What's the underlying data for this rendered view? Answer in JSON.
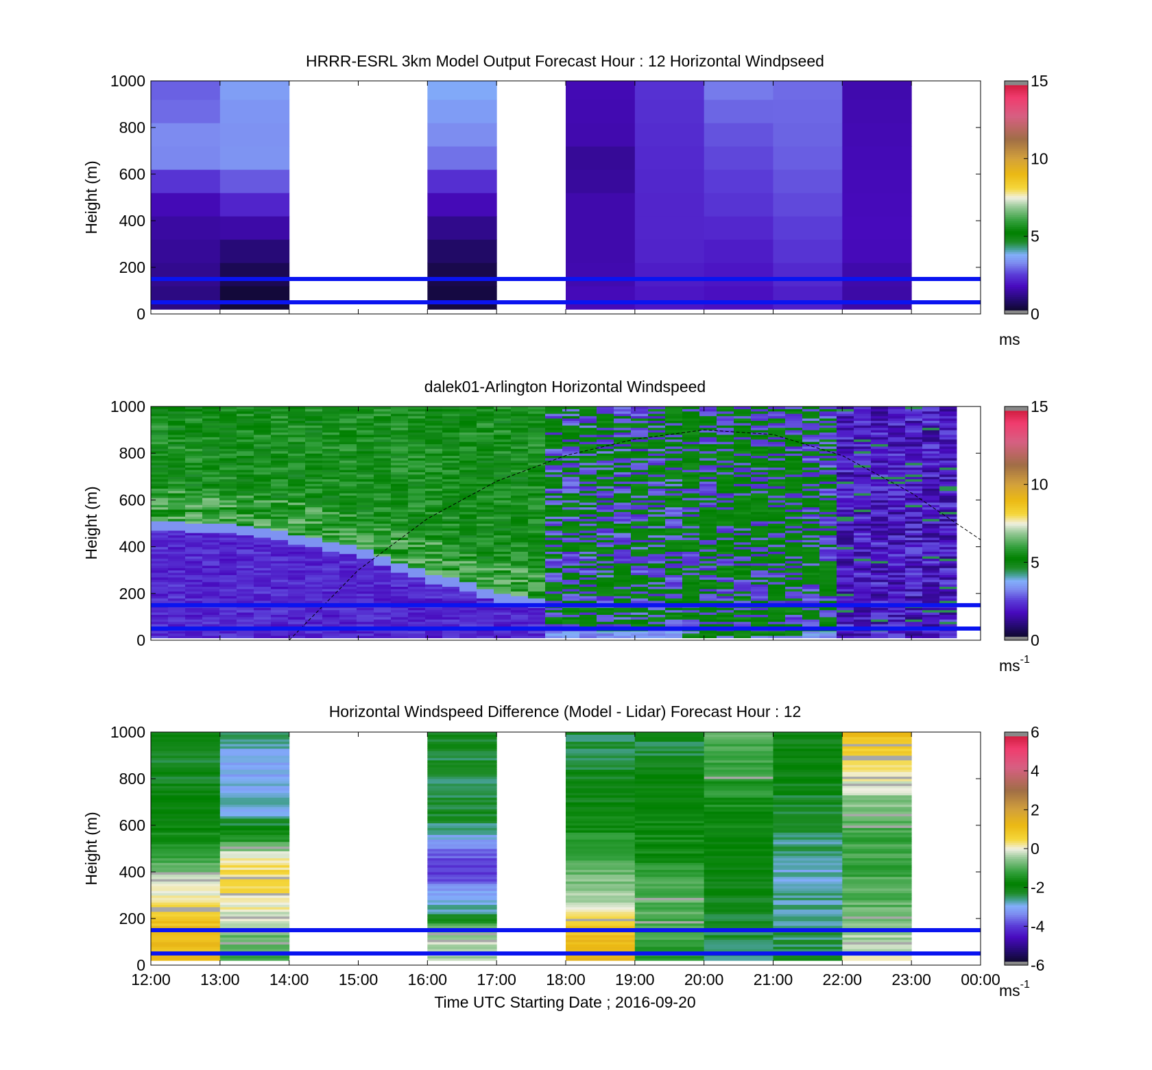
{
  "figure": {
    "x_tick_labels": [
      "12:00",
      "13:00",
      "14:00",
      "15:00",
      "16:00",
      "17:00",
      "18:00",
      "19:00",
      "20:00",
      "21:00",
      "22:00",
      "23:00",
      "00:00"
    ],
    "x_label": "Time UTC  Starting Date ; 2016-09-20"
  },
  "chart_data": [
    {
      "type": "heatmap",
      "title": "HRRR-ESRL 3km Model Output   Forecast Hour : 12 Horizontal Windpseed",
      "ylabel": "Height (m)",
      "ylim": [
        0,
        1000
      ],
      "y_ticks": [
        "0",
        "200",
        "400",
        "600",
        "800",
        "1000"
      ],
      "colorbar": {
        "range": [
          0,
          15
        ],
        "ticks": [
          "0",
          "5",
          "10",
          "15"
        ],
        "unit": "ms",
        "unit_superscript": ""
      },
      "hour_columns": [
        {
          "hour": "12:00",
          "profile": [
            [
              0,
              0.4
            ],
            [
              50,
              1.1
            ],
            [
              200,
              1.3
            ],
            [
              400,
              1.5
            ],
            [
              500,
              1.8
            ],
            [
              600,
              2.7
            ],
            [
              700,
              3.5
            ],
            [
              900,
              2.9
            ],
            [
              1000,
              2.9
            ]
          ]
        },
        {
          "hour": "13:00",
          "profile": [
            [
              0,
              0.3
            ],
            [
              100,
              0.4
            ],
            [
              250,
              0.9
            ],
            [
              400,
              1.7
            ],
            [
              500,
              2.4
            ],
            [
              700,
              3.6
            ],
            [
              800,
              3.3
            ],
            [
              900,
              3.5
            ],
            [
              1000,
              3.6
            ]
          ]
        },
        {
          "hour": "14:00",
          "profile": null
        },
        {
          "hour": "15:00",
          "profile": null
        },
        {
          "hour": "16:00",
          "profile": [
            [
              0,
              0.4
            ],
            [
              150,
              0.5
            ],
            [
              300,
              0.9
            ],
            [
              450,
              1.6
            ],
            [
              550,
              2.2
            ],
            [
              650,
              3.0
            ],
            [
              800,
              3.4
            ],
            [
              1000,
              3.8
            ]
          ]
        },
        {
          "hour": "17:00",
          "profile": null
        },
        {
          "hour": "18:00",
          "profile": [
            [
              0,
              1.8
            ],
            [
              200,
              1.6
            ],
            [
              500,
              1.6
            ],
            [
              650,
              1.2
            ],
            [
              700,
              1.6
            ],
            [
              1000,
              1.7
            ]
          ]
        },
        {
          "hour": "19:00",
          "profile": [
            [
              0,
              1.9
            ],
            [
              300,
              2.2
            ],
            [
              500,
              2.2
            ],
            [
              1000,
              2.4
            ]
          ]
        },
        {
          "hour": "20:00",
          "profile": [
            [
              0,
              1.8
            ],
            [
              300,
              2.1
            ],
            [
              450,
              2.4
            ],
            [
              800,
              2.8
            ],
            [
              1000,
              3.2
            ]
          ]
        },
        {
          "hour": "21:00",
          "profile": [
            [
              0,
              2.0
            ],
            [
              250,
              2.4
            ],
            [
              400,
              2.6
            ],
            [
              700,
              2.9
            ],
            [
              1000,
              3.0
            ]
          ]
        },
        {
          "hour": "22:00",
          "profile": [
            [
              0,
              1.5
            ],
            [
              200,
              1.6
            ],
            [
              300,
              1.8
            ],
            [
              700,
              1.7
            ],
            [
              1000,
              1.6
            ]
          ]
        },
        {
          "hour": "23:00",
          "profile": null
        }
      ],
      "reference_lines_m": [
        150,
        50
      ]
    },
    {
      "type": "heatmap",
      "title": "dalek01-Arlington  Horizontal Windspeed",
      "ylabel": "Height (m)",
      "ylim": [
        0,
        1000
      ],
      "y_ticks": [
        "0",
        "200",
        "400",
        "600",
        "800",
        "1000"
      ],
      "colorbar": {
        "range": [
          0,
          15
        ],
        "ticks": [
          "0",
          "5",
          "10",
          "15"
        ],
        "unit": "ms",
        "unit_superscript": "-1"
      },
      "boundary_layer_top_m": [
        [
          12,
          490
        ],
        [
          13,
          480
        ],
        [
          14,
          440
        ],
        [
          15,
          380
        ],
        [
          16,
          270
        ],
        [
          16.5,
          240
        ],
        [
          17,
          180
        ],
        [
          18,
          140
        ],
        [
          19,
          120
        ],
        [
          20,
          120
        ],
        [
          21,
          120
        ],
        [
          22,
          120
        ]
      ],
      "sun_curve_m": [
        [
          14,
          0
        ],
        [
          15,
          300
        ],
        [
          16,
          520
        ],
        [
          17,
          680
        ],
        [
          18,
          790
        ],
        [
          19,
          860
        ],
        [
          20,
          900
        ],
        [
          21,
          880
        ],
        [
          22,
          790
        ],
        [
          23,
          630
        ],
        [
          24,
          430
        ]
      ],
      "reference_lines_m": [
        150,
        50
      ]
    },
    {
      "type": "heatmap",
      "title": "Horizontal Windspeed Difference (Model - Lidar) Forecast Hour : 12",
      "ylabel": "Height (m)",
      "ylim": [
        0,
        1000
      ],
      "y_ticks": [
        "0",
        "200",
        "400",
        "600",
        "800",
        "1000"
      ],
      "colorbar": {
        "range": [
          -6,
          6
        ],
        "ticks": [
          "-6",
          "-4",
          "-2",
          "0",
          "2",
          "4",
          "6"
        ],
        "unit": "ms",
        "unit_superscript": "-1"
      },
      "hour_columns": [
        {
          "hour": "12:00",
          "profile": [
            [
              0,
              1.0
            ],
            [
              150,
              1.2
            ],
            [
              250,
              0.4
            ],
            [
              350,
              -0.2
            ],
            [
              500,
              -1.5
            ],
            [
              700,
              -2.0
            ],
            [
              900,
              -2.2
            ],
            [
              1000,
              -2.0
            ]
          ]
        },
        {
          "hour": "13:00",
          "profile": [
            [
              0,
              -1.2
            ],
            [
              100,
              -1.0
            ],
            [
              200,
              -0.2
            ],
            [
              350,
              0.5
            ],
            [
              450,
              0.3
            ],
            [
              550,
              -1.5
            ],
            [
              650,
              -2.8
            ],
            [
              850,
              -3.0
            ],
            [
              1000,
              -2.5
            ]
          ]
        },
        {
          "hour": "14:00",
          "profile": null
        },
        {
          "hour": "15:00",
          "profile": null
        },
        {
          "hour": "16:00",
          "profile": [
            [
              0,
              -0.3
            ],
            [
              150,
              -0.4
            ],
            [
              220,
              -2.6
            ],
            [
              300,
              -3.0
            ],
            [
              380,
              -4.0
            ],
            [
              480,
              -3.8
            ],
            [
              540,
              -3.0
            ],
            [
              650,
              -2.2
            ],
            [
              800,
              -2.5
            ],
            [
              1000,
              -2.0
            ]
          ]
        },
        {
          "hour": "17:00",
          "profile": null
        },
        {
          "hour": "18:00",
          "profile": [
            [
              0,
              1.2
            ],
            [
              150,
              1.0
            ],
            [
              220,
              0.2
            ],
            [
              300,
              -0.5
            ],
            [
              500,
              -1.2
            ],
            [
              700,
              -2.0
            ],
            [
              1000,
              -2.4
            ]
          ]
        },
        {
          "hour": "19:00",
          "profile": [
            [
              0,
              -1.3
            ],
            [
              300,
              -0.9
            ],
            [
              500,
              -1.6
            ],
            [
              700,
              -1.8
            ],
            [
              900,
              -2.3
            ],
            [
              1000,
              -2.2
            ]
          ]
        },
        {
          "hour": "20:00",
          "profile": [
            [
              0,
              -2.5
            ],
            [
              300,
              -2.0
            ],
            [
              600,
              -1.7
            ],
            [
              800,
              -1.3
            ],
            [
              1000,
              -0.9
            ]
          ]
        },
        {
          "hour": "21:00",
          "profile": [
            [
              0,
              -2.3
            ],
            [
              400,
              -2.8
            ],
            [
              700,
              -2.2
            ],
            [
              900,
              -1.8
            ],
            [
              1000,
              -2.2
            ]
          ]
        },
        {
          "hour": "22:00",
          "profile": [
            [
              0,
              0.3
            ],
            [
              150,
              -0.6
            ],
            [
              300,
              -1.0
            ],
            [
              500,
              -1.2
            ],
            [
              700,
              -0.6
            ],
            [
              850,
              0.3
            ],
            [
              950,
              0.8
            ],
            [
              1000,
              1.2
            ]
          ]
        },
        {
          "hour": "23:00",
          "profile": null
        }
      ],
      "reference_lines_m": [
        150,
        50
      ]
    }
  ]
}
